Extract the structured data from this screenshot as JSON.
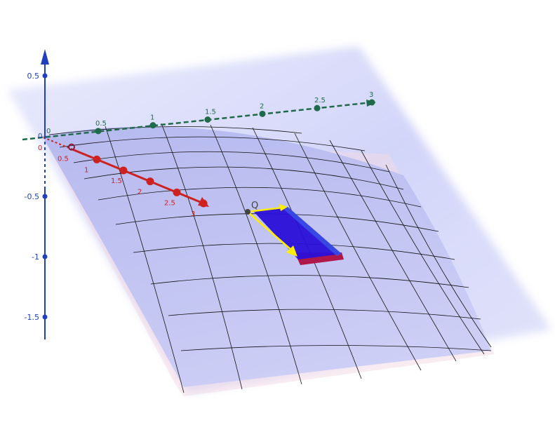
{
  "point_label": "Q",
  "axes": {
    "x": {
      "color": "#cc2222",
      "origin_label": "0",
      "ticks": [
        {
          "value": 0.5,
          "label": "0.5"
        },
        {
          "value": 1,
          "label": "1"
        },
        {
          "value": 1.5,
          "label": "1.5"
        },
        {
          "value": 2,
          "label": "2"
        },
        {
          "value": 2.5,
          "label": "2.5"
        },
        {
          "value": 3,
          "label": "3"
        }
      ]
    },
    "y": {
      "color": "#1f6a4a",
      "origin_label": "0",
      "ticks": [
        {
          "value": 0.5,
          "label": "0.5"
        },
        {
          "value": 1,
          "label": "1"
        },
        {
          "value": 1.5,
          "label": "1.5"
        },
        {
          "value": 2,
          "label": "2"
        },
        {
          "value": 2.5,
          "label": "2.5"
        },
        {
          "value": 3,
          "label": "3"
        }
      ]
    },
    "z": {
      "color": "#1f3fbf",
      "origin_label": "0",
      "ticks": [
        {
          "value": 0.5,
          "label": "0.5"
        },
        {
          "value": -0.5,
          "label": "-0.5"
        },
        {
          "value": -1,
          "label": "-1"
        },
        {
          "value": -1.5,
          "label": "-1.5"
        }
      ]
    }
  },
  "colors": {
    "surface": "#b9bff2",
    "mesh": "#111111",
    "vector": "#ffee00",
    "patch": "#2a10d8",
    "patch_base": "#b0184a"
  }
}
